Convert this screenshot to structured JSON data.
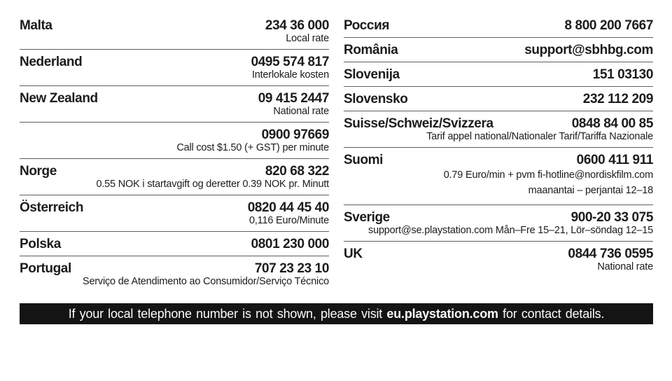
{
  "colors": {
    "background": "#ffffff",
    "text": "#1c1c1c",
    "divider": "#5e5e5e",
    "footer_bg": "#141414",
    "footer_text": "#fbfbfb"
  },
  "columns": {
    "left": [
      {
        "country": "Malta",
        "contact": "234 36 000",
        "notes": [
          "Local rate"
        ]
      },
      {
        "country": "Nederland",
        "contact": "0495 574 817",
        "notes": [
          "Interlokale kosten"
        ]
      },
      {
        "country": "New Zealand",
        "contact": "09 415 2447",
        "notes": [
          "National rate"
        ]
      },
      {
        "country": "",
        "contact": "0900 97669",
        "notes": [
          "Call cost $1.50 (+ GST) per minute"
        ]
      },
      {
        "country": "Norge",
        "contact": "820 68 322",
        "notes": [
          "0.55 NOK i startavgift og deretter 0.39 NOK pr. Minutt"
        ]
      },
      {
        "country": "Österreich",
        "contact": "0820 44 45 40",
        "notes": [
          "0,116 Euro/Minute"
        ]
      },
      {
        "country": "Polska",
        "contact": "0801 230 000",
        "notes": []
      },
      {
        "country": "Portugal",
        "contact": "707 23 23 10",
        "notes": [
          "Serviço de Atendimento ao Consumidor/Serviço Técnico"
        ]
      }
    ],
    "right": [
      {
        "country": "Россия",
        "contact": "8 800 200 7667",
        "notes": []
      },
      {
        "country": "România",
        "contact": "support@sbhbg.com",
        "notes": []
      },
      {
        "country": "Slovenija",
        "contact": "151 03130",
        "notes": []
      },
      {
        "country": "Slovensko",
        "contact": "232 112 209",
        "notes": []
      },
      {
        "country": "Suisse/Schweiz/Svizzera",
        "contact": "0848 84 00 85",
        "notes": [
          "Tarif appel national/Nationaler Tarif/Tariffa Nazionale"
        ]
      },
      {
        "country": "Suomi",
        "contact": "0600 411 911",
        "notes": [
          "0.79 Euro/min + pvm fi-hotline@nordiskfilm.com",
          "maanantai – perjantai 12–18"
        ]
      },
      {
        "country": "Sverige",
        "contact": "900-20 33 075",
        "notes": [
          "support@se.playstation.com Mån–Fre 15–21, Lör–söndag 12–15"
        ]
      },
      {
        "country": "UK",
        "contact": "0844 736 0595",
        "notes": [
          "National rate"
        ]
      }
    ]
  },
  "footer": {
    "prefix": "If your local telephone number is not shown, please visit ",
    "bold": "eu.playstation.com",
    "suffix": " for contact details."
  }
}
